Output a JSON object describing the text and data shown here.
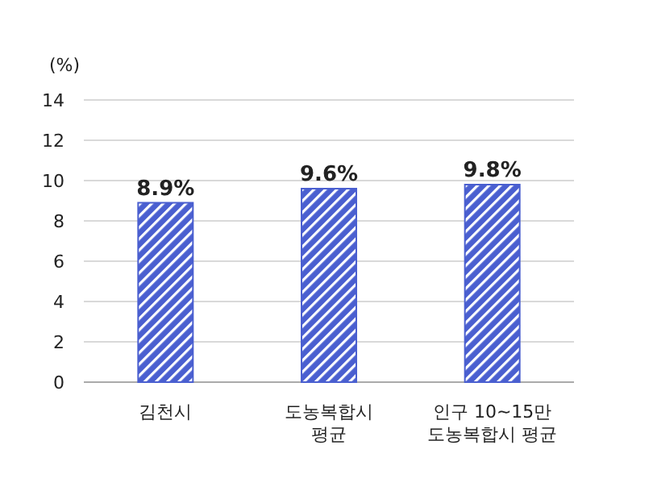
{
  "chart_data": {
    "type": "bar",
    "ylabel": "(%)",
    "categories": [
      "김천시",
      "도농복합시\n평균",
      "인구 10~15만\n도농복합시 평균"
    ],
    "values": [
      8.9,
      9.6,
      9.8
    ],
    "value_labels": [
      "8.9%",
      "9.6%",
      "9.8%"
    ],
    "color": "#4a5fd0",
    "ylim": [
      0,
      14
    ],
    "yticks": [
      0,
      2,
      4,
      6,
      8,
      10,
      12,
      14
    ],
    "grid": "y"
  }
}
